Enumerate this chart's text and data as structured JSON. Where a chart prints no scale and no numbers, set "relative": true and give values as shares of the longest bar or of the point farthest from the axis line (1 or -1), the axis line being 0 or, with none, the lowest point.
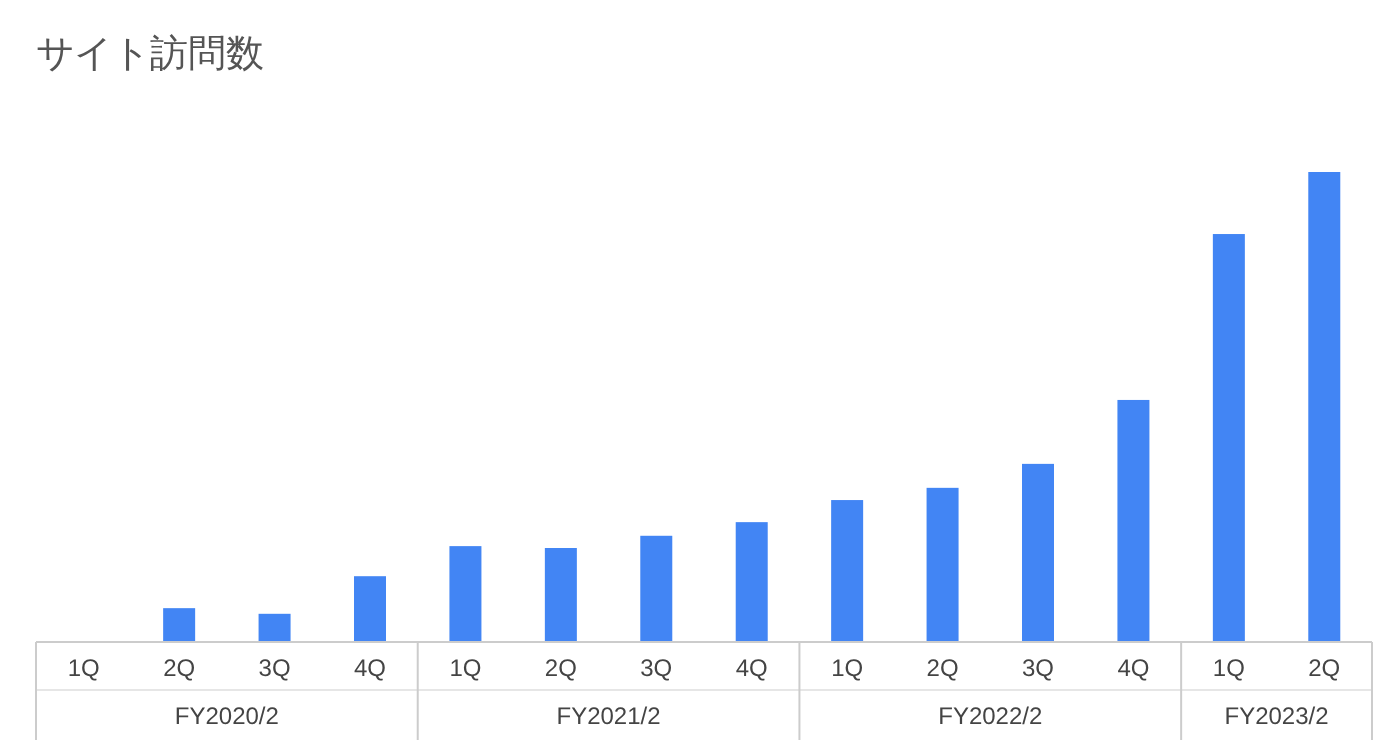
{
  "chart_data": {
    "type": "bar",
    "title": "サイト訪問数",
    "relative": true,
    "color": "#4285f4",
    "categories": [
      "1Q",
      "2Q",
      "3Q",
      "4Q",
      "1Q",
      "2Q",
      "3Q",
      "4Q",
      "1Q",
      "2Q",
      "3Q",
      "4Q",
      "1Q",
      "2Q"
    ],
    "values": [
      0,
      0.072,
      0.06,
      0.14,
      0.204,
      0.2,
      0.226,
      0.255,
      0.302,
      0.328,
      0.379,
      0.515,
      0.868,
      1
    ],
    "annotations": [
      "FY2020/2",
      "FY2021/2",
      "FY2022/2",
      "FY2023/2"
    ]
  }
}
